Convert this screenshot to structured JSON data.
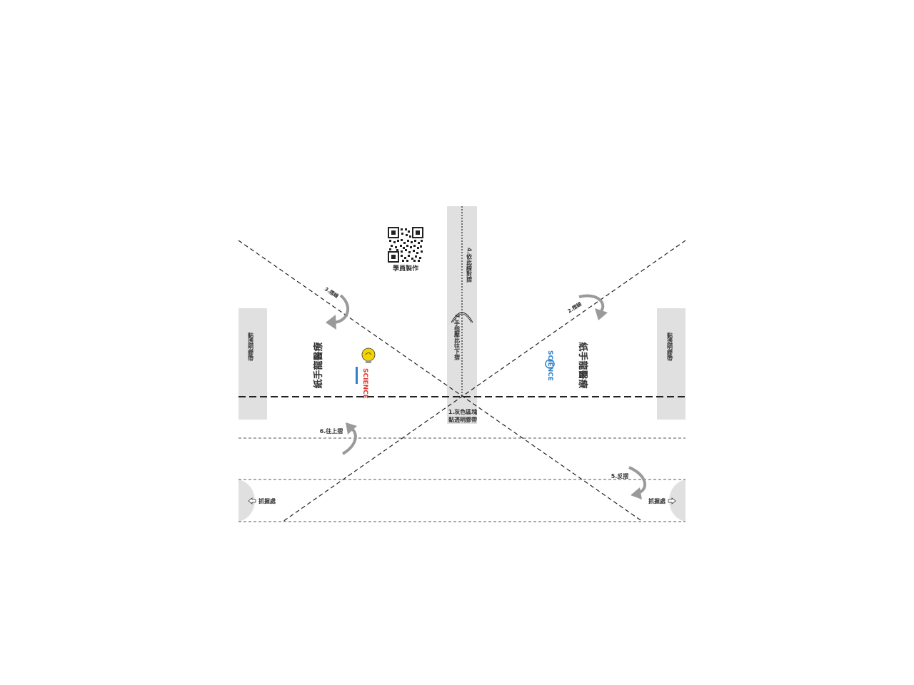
{
  "colors": {
    "panel": "#e0e0e0",
    "arrow": "#9a9a9a",
    "line": "#222222",
    "text": "#333333",
    "bulb": "#f4d400",
    "science_red": "#e2362d",
    "science_blue": "#2f80c8"
  },
  "labels": {
    "qr_caption": "學員製作",
    "tape_left": "黏透明膠帶",
    "tape_right": "黏透明膠帶",
    "step2": "2.摺線",
    "step3": "3.摺線",
    "step1_line1": "1.灰色區塊",
    "step1_line2": "黏透明膠帶",
    "step4": "4.依此線對摺",
    "step5": "5.反摺",
    "step6": "6.往上摺",
    "step7": "7.手指壓此往下摺",
    "grip_left": "抓握處",
    "grip_right": "抓握處",
    "title_left": "紙手龍醫療",
    "title_right": "紙手龍醫療",
    "logo_text": "SCIENCE"
  },
  "icons": {
    "qr": "qr-code-icon",
    "bulb_logo": "lightbulb-logo-icon",
    "science_logo": "science-logo-icon",
    "grip_arrow": "hollow-arrow-icon",
    "curved_arrow": "curved-arrow-icon"
  }
}
